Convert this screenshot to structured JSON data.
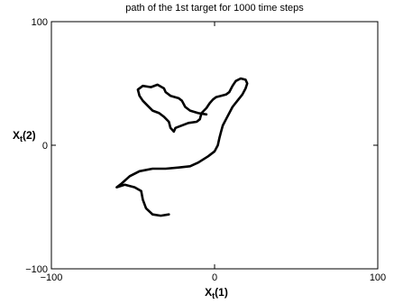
{
  "chart_data": {
    "type": "line",
    "title": "path of the 1st target for 1000 time steps",
    "xlabel": {
      "main": "X",
      "sub": "t",
      "suffix": "(1)"
    },
    "ylabel": {
      "main": "X",
      "sub": "t",
      "suffix": "(2)"
    },
    "xlim": [
      -100,
      100
    ],
    "ylim": [
      -100,
      100
    ],
    "x_ticks": [
      {
        "value": -100,
        "label": "−100"
      },
      {
        "value": 0,
        "label": "0"
      },
      {
        "value": 100,
        "label": "100"
      }
    ],
    "y_ticks": [
      {
        "value": -100,
        "label": "−100"
      },
      {
        "value": 0,
        "label": "0"
      },
      {
        "value": 100,
        "label": "100"
      }
    ],
    "grid": false,
    "series": [
      {
        "color": "#000000",
        "points": [
          [
            -28,
            -56
          ],
          [
            -33,
            -57
          ],
          [
            -38,
            -56
          ],
          [
            -42,
            -51
          ],
          [
            -44,
            -44
          ],
          [
            -45,
            -37
          ],
          [
            -49,
            -34
          ],
          [
            -55,
            -32
          ],
          [
            -60,
            -34
          ],
          [
            -57,
            -31
          ],
          [
            -52,
            -25
          ],
          [
            -46,
            -21
          ],
          [
            -38,
            -19
          ],
          [
            -30,
            -19
          ],
          [
            -22,
            -18
          ],
          [
            -15,
            -17
          ],
          [
            -10,
            -14
          ],
          [
            -4,
            -9
          ],
          [
            0,
            -5
          ],
          [
            2,
            0
          ],
          [
            3,
            6
          ],
          [
            4,
            11
          ],
          [
            5,
            16
          ],
          [
            7,
            21
          ],
          [
            9,
            26
          ],
          [
            11,
            31
          ],
          [
            14,
            36
          ],
          [
            17,
            41
          ],
          [
            19,
            46
          ],
          [
            20,
            50
          ],
          [
            19,
            53
          ],
          [
            16,
            54
          ],
          [
            13,
            52
          ],
          [
            11,
            48
          ],
          [
            9,
            43
          ],
          [
            7,
            41
          ],
          [
            4,
            40
          ],
          [
            1,
            39
          ],
          [
            -1,
            37
          ],
          [
            -3,
            34
          ],
          [
            -5,
            30
          ],
          [
            -8,
            26
          ],
          [
            -9,
            21
          ],
          [
            -11,
            19
          ],
          [
            -16,
            18
          ],
          [
            -20,
            16
          ],
          [
            -24,
            14
          ],
          [
            -25,
            11
          ],
          [
            -27,
            14
          ],
          [
            -28,
            19
          ],
          [
            -31,
            23
          ],
          [
            -34,
            26
          ],
          [
            -38,
            28
          ],
          [
            -41,
            32
          ],
          [
            -44,
            36
          ],
          [
            -46,
            40
          ],
          [
            -47,
            45
          ],
          [
            -44,
            48
          ],
          [
            -39,
            47
          ],
          [
            -35,
            49
          ],
          [
            -31,
            46
          ],
          [
            -30,
            43
          ],
          [
            -27,
            40
          ],
          [
            -22,
            38
          ],
          [
            -20,
            36
          ],
          [
            -18,
            31
          ],
          [
            -15,
            28
          ],
          [
            -10,
            26
          ],
          [
            -5,
            25
          ]
        ]
      }
    ]
  }
}
